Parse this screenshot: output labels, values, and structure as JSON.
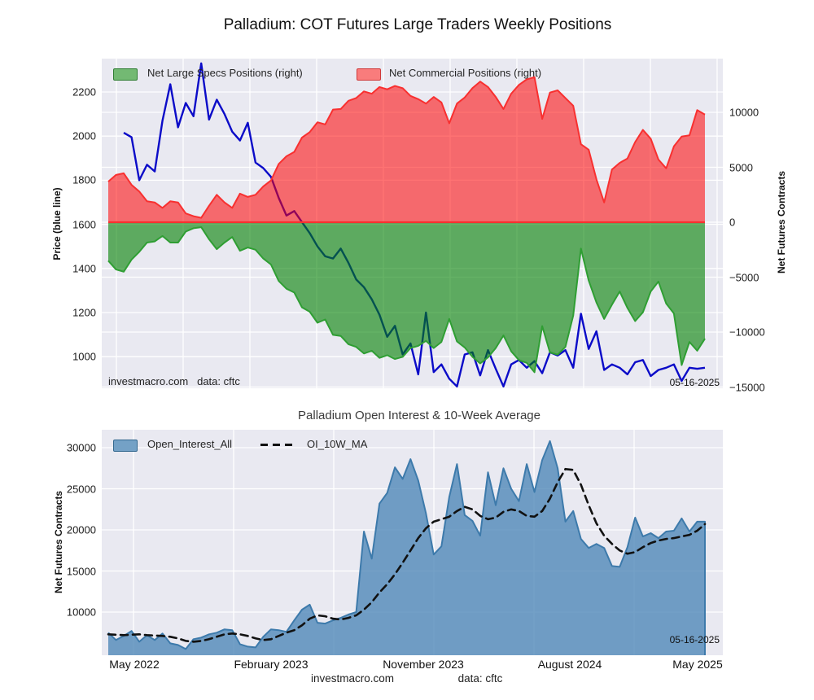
{
  "title": "Palladium: COT Futures Large Traders Weekly Positions",
  "top_chart": {
    "legend": [
      {
        "label": "Net Large Specs Positions (right)",
        "swatch": "#73b973",
        "swatch_border": "#2f7d32"
      },
      {
        "label": "Net Commercial Positions (right)",
        "swatch": "#f97c7c",
        "swatch_border": "#cf3a3a"
      }
    ],
    "left_axis_label": "Price (blue line)",
    "right_axis_label": "Net Futures Contracts",
    "watermark_site": "investmacro.com",
    "watermark_source": "data: cftc",
    "date_annotation": "05-16-2025"
  },
  "bottom_chart": {
    "title": "Palladium Open Interest & 10-Week Average",
    "legend": [
      {
        "label": "Open_Interest_All",
        "swatch": "#74a1c6",
        "swatch_border": "#33688f"
      },
      {
        "label": "OI_10W_MA"
      }
    ],
    "left_axis_label": "Net Futures Contracts",
    "date_annotation": "05-16-2025"
  },
  "footer": {
    "site": "investmacro.com",
    "source": "data: cftc"
  },
  "colors": {
    "plot_bg": "#e9e9f1",
    "grid": "#ffffff",
    "price_line": "#0b0bc8",
    "specs_fill": "#008000",
    "specs_edge": "#2f9e33",
    "commercials_fill": "#ff0000",
    "commercials_edge": "#f83030",
    "zero_line": "#f83030",
    "oi_fill": "#4682b4",
    "oi_edge": "#3d7aab",
    "ma_line": "#111111"
  },
  "chart_data": [
    {
      "type": "line",
      "title": "Palladium price vs COT net positions, weekly, May 2022 - May 2025",
      "left_axis": {
        "label": "Price (blue line)",
        "ticks": [
          2200,
          2000,
          1800,
          1600,
          1400,
          1200,
          1000
        ],
        "range": [
          856,
          2351
        ]
      },
      "right_axis": {
        "label": "Net Futures Contracts",
        "ticks": [
          10000,
          5000,
          0,
          -5000,
          -10000,
          -15000
        ],
        "range": [
          -15260,
          14890
        ]
      },
      "grid": true,
      "legend_position": "upper left inside",
      "series": [
        {
          "name": "Price",
          "axis": "left",
          "type": "line",
          "color": "#0b0bc8",
          "values": [
            null,
            null,
            2015,
            1995,
            1800,
            1870,
            1840,
            2070,
            2235,
            2040,
            2150,
            2090,
            2330,
            2075,
            2165,
            2100,
            2020,
            1980,
            2060,
            1880,
            1855,
            1815,
            1720,
            1640,
            1660,
            1610,
            1560,
            1500,
            1455,
            1445,
            1490,
            1425,
            1350,
            1315,
            1260,
            1190,
            1090,
            1140,
            1010,
            1060,
            920,
            1200,
            930,
            965,
            900,
            865,
            1010,
            1020,
            915,
            1030,
            945,
            865,
            965,
            985,
            950,
            980,
            925,
            1020,
            1005,
            1030,
            950,
            1195,
            1035,
            1115,
            940,
            965,
            950,
            920,
            975,
            985,
            912,
            940,
            950,
            965,
            890,
            950,
            945,
            950
          ]
        },
        {
          "name": "Net Large Specs Positions",
          "axis": "right",
          "type": "area",
          "color": "green",
          "values": [
            -3500,
            -4300,
            -4500,
            -3400,
            -2700,
            -1850,
            -1750,
            -1250,
            -1850,
            -1850,
            -850,
            -550,
            -450,
            -1550,
            -2450,
            -1850,
            -1350,
            -2600,
            -2300,
            -2500,
            -3300,
            -3850,
            -5350,
            -6050,
            -6400,
            -7750,
            -8150,
            -9150,
            -8850,
            -10250,
            -10350,
            -11100,
            -11350,
            -11950,
            -11700,
            -12350,
            -12100,
            -12450,
            -12250,
            -11450,
            -11250,
            -10800,
            -11450,
            -10900,
            -8800,
            -10850,
            -11400,
            -12250,
            -12850,
            -12300,
            -11450,
            -10300,
            -11750,
            -12550,
            -12800,
            -13650,
            -9450,
            -11850,
            -12050,
            -11350,
            -8500,
            -2400,
            -5300,
            -7300,
            -8800,
            -7500,
            -6300,
            -7800,
            -9000,
            -8200,
            -6300,
            -5400,
            -7400,
            -8300,
            -13000,
            -10900,
            -11700,
            -10600
          ]
        },
        {
          "name": "Net Commercial Positions",
          "axis": "right",
          "type": "area",
          "color": "red",
          "values": [
            3700,
            4300,
            4450,
            3400,
            2800,
            1900,
            1800,
            1300,
            1900,
            1800,
            800,
            550,
            400,
            1500,
            2500,
            1800,
            1300,
            2600,
            2300,
            2500,
            3250,
            3800,
            5300,
            6000,
            6400,
            7700,
            8200,
            9100,
            8900,
            10250,
            10300,
            11050,
            11300,
            11900,
            11700,
            12300,
            12100,
            12400,
            12200,
            11500,
            11200,
            10800,
            11400,
            10900,
            9000,
            10800,
            11350,
            12200,
            12800,
            12300,
            11400,
            10300,
            11700,
            12500,
            13000,
            13200,
            9400,
            11800,
            12000,
            11300,
            10600,
            7100,
            6600,
            3900,
            1800,
            4800,
            5400,
            5800,
            7300,
            8400,
            7600,
            5700,
            4900,
            6900,
            7800,
            7900,
            10200,
            9800
          ]
        }
      ],
      "annotations": [
        "investmacro.com",
        "data: cftc",
        "05-16-2025"
      ]
    },
    {
      "type": "area",
      "title": "Palladium Open Interest & 10-Week Average",
      "left_axis": {
        "label": "Net Futures Contracts",
        "ticks": [
          30000,
          25000,
          20000,
          15000,
          10000
        ],
        "range": [
          4750,
          32170
        ]
      },
      "x_ticks": [
        {
          "label": "May 2022"
        },
        {
          "label": "February 2023"
        },
        {
          "label": "November 2023"
        },
        {
          "label": "August 2024"
        },
        {
          "label": "May 2025"
        }
      ],
      "grid": true,
      "legend_position": "upper left inside",
      "series": [
        {
          "name": "Open_Interest_All",
          "type": "area",
          "color": "#4682b4",
          "values": [
            7500,
            6600,
            7100,
            7700,
            6400,
            7200,
            6600,
            7400,
            6200,
            6000,
            5500,
            6700,
            6900,
            7300,
            7500,
            7900,
            7800,
            6100,
            5800,
            5700,
            7000,
            7900,
            7800,
            7600,
            9000,
            10300,
            10900,
            8700,
            8600,
            9000,
            9300,
            9700,
            10000,
            19800,
            16500,
            23200,
            24500,
            27600,
            26200,
            28600,
            26000,
            22000,
            17000,
            18000,
            24000,
            28000,
            21800,
            21100,
            19300,
            27000,
            23000,
            27500,
            25000,
            23500,
            28000,
            24600,
            28500,
            30800,
            27500,
            21000,
            22300,
            18900,
            17800,
            18300,
            17800,
            15600,
            15500,
            17900,
            21500,
            19200,
            19600,
            19000,
            19800,
            19900,
            21400,
            19800,
            21000,
            21000
          ]
        },
        {
          "name": "OI_10W_MA",
          "type": "dashed-line",
          "color": "#111111",
          "values": [
            7300,
            7250,
            7200,
            7250,
            7300,
            7200,
            7150,
            7100,
            7000,
            6800,
            6500,
            6400,
            6500,
            6700,
            7000,
            7300,
            7400,
            7300,
            7100,
            6800,
            6600,
            6700,
            7100,
            7500,
            7800,
            8400,
            9200,
            9600,
            9500,
            9200,
            9100,
            9300,
            9600,
            10300,
            11200,
            12400,
            13400,
            14600,
            16000,
            17500,
            19000,
            20200,
            21000,
            21300,
            21600,
            22300,
            22800,
            22500,
            21700,
            21300,
            21500,
            22200,
            22500,
            22300,
            21700,
            21600,
            22300,
            23800,
            25800,
            27400,
            27300,
            25500,
            23000,
            20800,
            19300,
            18300,
            17500,
            17100,
            17300,
            17900,
            18400,
            18700,
            18900,
            19000,
            19200,
            19400,
            19900,
            20700
          ]
        }
      ],
      "annotations": [
        "05-16-2025",
        "investmacro.com",
        "data: cftc"
      ]
    }
  ]
}
